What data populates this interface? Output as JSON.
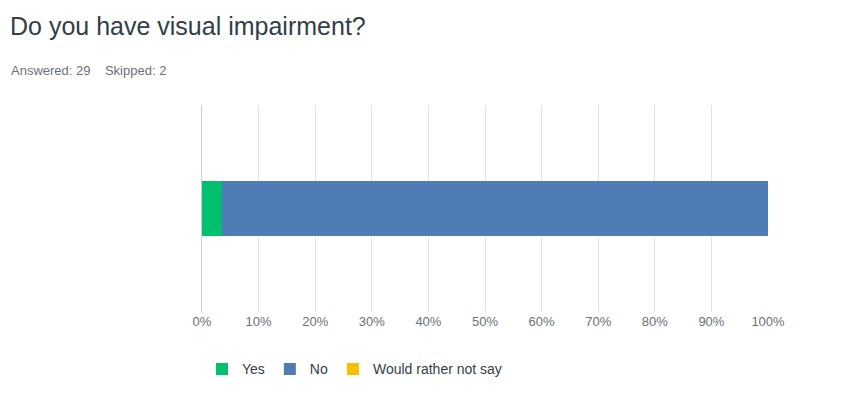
{
  "chart_data": {
    "type": "bar",
    "title": "Do you have visual impairment?",
    "subtitle": "Answered: 29    Skipped: 2",
    "orientation": "horizontal",
    "stacked": true,
    "categories": [
      null
    ],
    "series": [
      {
        "name": "Yes",
        "color": "#00bf6f",
        "values": [
          3.45
        ]
      },
      {
        "name": "No",
        "color": "#507cb6",
        "values": [
          96.55
        ]
      },
      {
        "name": "Would rather not say",
        "color": "#f9be00",
        "values": [
          0
        ]
      }
    ],
    "xlim": [
      0,
      100
    ],
    "xticks": [
      {
        "value": 0,
        "label": "0%"
      },
      {
        "value": 10,
        "label": "10%"
      },
      {
        "value": 20,
        "label": "20%"
      },
      {
        "value": 30,
        "label": "30%"
      },
      {
        "value": 40,
        "label": "40%"
      },
      {
        "value": 50,
        "label": "50%"
      },
      {
        "value": 60,
        "label": "60%"
      },
      {
        "value": 70,
        "label": "70%"
      },
      {
        "value": 80,
        "label": "80%"
      },
      {
        "value": 90,
        "label": "90%"
      },
      {
        "value": 100,
        "label": "100%"
      }
    ],
    "grid": true,
    "legend": "bottom left"
  }
}
